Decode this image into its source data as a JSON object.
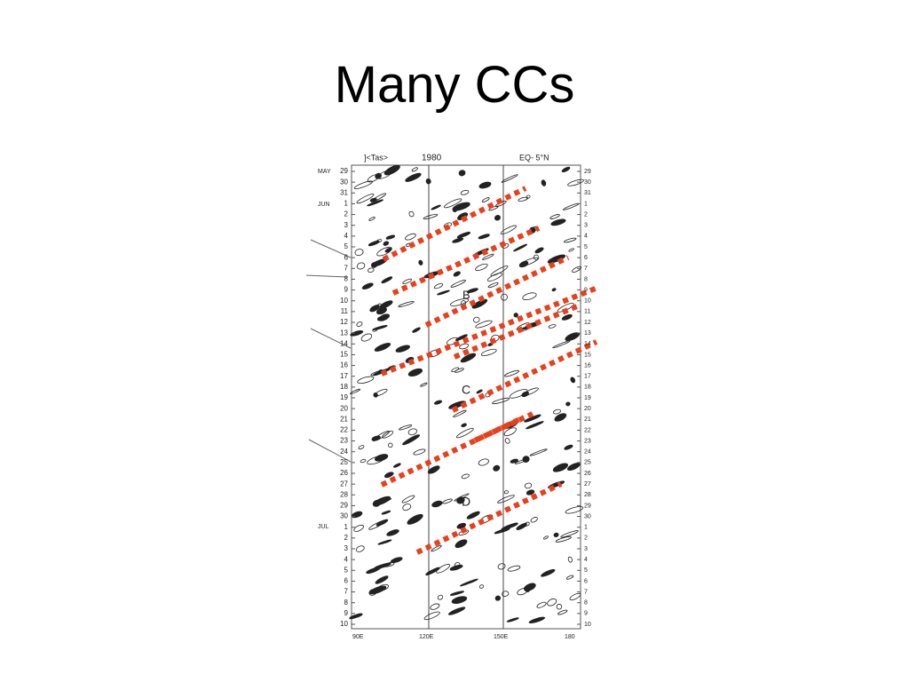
{
  "slide": {
    "title": "Many CCs",
    "figure": {
      "header_left": "]<Tas>",
      "header_year": "1980",
      "header_right": "EQ- 5°N",
      "months": [
        "MAY",
        "JUN",
        "JUL"
      ],
      "day_labels": [
        "29",
        "30",
        "31",
        "1",
        "2",
        "3",
        "4",
        "5",
        "6",
        "7",
        "8",
        "9",
        "10",
        "11",
        "12",
        "13",
        "14",
        "15",
        "16",
        "17",
        "18",
        "19",
        "20",
        "21",
        "22",
        "23",
        "24",
        "25",
        "26",
        "27",
        "28",
        "29",
        "30",
        "1",
        "2",
        "3",
        "4",
        "5",
        "6",
        "7",
        "8",
        "9",
        "10"
      ],
      "x_labels": [
        "90E",
        "120E",
        "150E",
        "180"
      ],
      "letters": [
        "B",
        "C",
        "D"
      ]
    }
  }
}
